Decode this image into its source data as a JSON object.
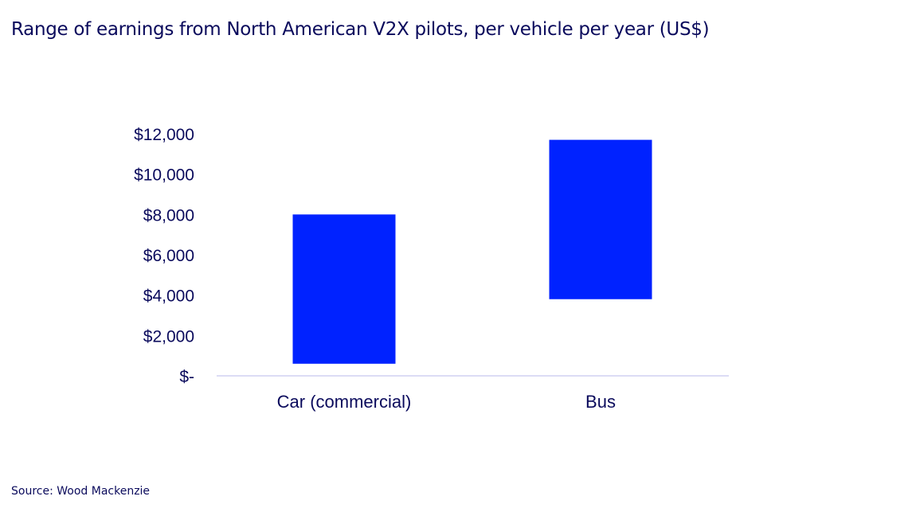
{
  "chart_data": {
    "type": "bar",
    "subtype": "floating-range",
    "title": "Range of earnings from North American V2X pilots, per vehicle per year (US$)",
    "categories": [
      "Car (commercial)",
      "Bus"
    ],
    "series": [
      {
        "low": [
          600,
          3800
        ],
        "high": [
          8000,
          11700
        ]
      }
    ],
    "ylim": [
      0,
      12000
    ],
    "yticks": [
      0,
      2000,
      4000,
      6000,
      8000,
      10000,
      12000
    ],
    "ytick_labels": [
      "$-",
      "$2,000",
      "$4,000",
      "$6,000",
      "$8,000",
      "$10,000",
      "$12,000"
    ],
    "grid": false,
    "bar_color": "#0022ff",
    "axis_color": "#c8c8ef"
  },
  "source": "Source: Wood Mackenzie"
}
